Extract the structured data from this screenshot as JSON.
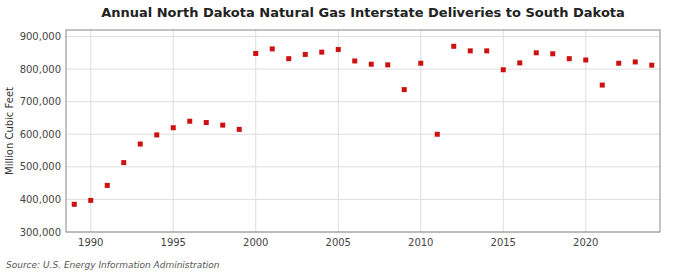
{
  "chart_data": {
    "type": "scatter",
    "title": "Annual North Dakota Natural Gas Interstate Deliveries to South Dakota",
    "ylabel": "Million Cubic Feet",
    "annotations": [
      "Source: U.S. Energy Information Administration"
    ],
    "color": "#cc1111",
    "marker": "square",
    "grid": true,
    "xlim": [
      1988.5,
      2024.5
    ],
    "ylim": [
      300000,
      920000
    ],
    "xticks": [
      1990,
      1995,
      2000,
      2005,
      2010,
      2015,
      2020
    ],
    "yticks": [
      {
        "value": 300000,
        "label": "300,000"
      },
      {
        "value": 400000,
        "label": "400,000"
      },
      {
        "value": 500000,
        "label": "500,000"
      },
      {
        "value": 600000,
        "label": "600,000"
      },
      {
        "value": 700000,
        "label": "700,000"
      },
      {
        "value": 800000,
        "label": "800,000"
      },
      {
        "value": 900000,
        "label": "900,000"
      }
    ],
    "x": [
      1989,
      1990,
      1991,
      1992,
      1993,
      1994,
      1995,
      1996,
      1997,
      1998,
      1999,
      2000,
      2001,
      2002,
      2003,
      2004,
      2005,
      2006,
      2007,
      2008,
      2009,
      2010,
      2011,
      2012,
      2013,
      2014,
      2015,
      2016,
      2017,
      2018,
      2019,
      2020,
      2021,
      2022,
      2023,
      2024
    ],
    "values": [
      385000,
      397000,
      443000,
      513000,
      570000,
      598000,
      620000,
      640000,
      636000,
      628000,
      615000,
      848000,
      862000,
      832000,
      845000,
      852000,
      860000,
      825000,
      815000,
      813000,
      737000,
      818000,
      600000,
      870000,
      856000,
      856000,
      798000,
      819000,
      850000,
      847000,
      832000,
      828000,
      751000,
      818000,
      822000,
      812000
    ]
  }
}
